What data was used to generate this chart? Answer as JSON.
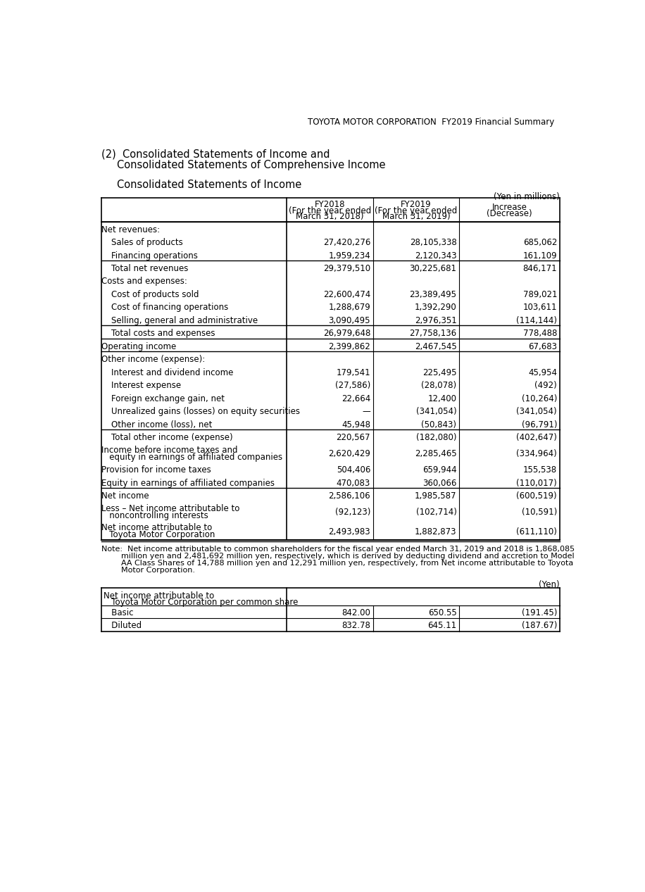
{
  "header_title": "TOYOTA MOTOR CORPORATION  FY2019 Financial Summary",
  "section_title1": "(2)  Consolidated Statements of Income and",
  "section_title2": "     Consolidated Statements of Comprehensive Income",
  "section_title3": "Consolidated Statements of Income",
  "yen_millions_label": "(Yen in millions)",
  "col_headers": [
    [
      "FY2018",
      "(For the year ended",
      "March 31, 2018)"
    ],
    [
      "FY2019",
      "(For the year ended",
      "March 31, 2019)"
    ],
    [
      "Increase",
      "(Decrease)"
    ]
  ],
  "rows": [
    {
      "label": "Net revenues:",
      "fy2018": "",
      "fy2019": "",
      "inc": "",
      "indent": 0,
      "top_border": true,
      "double": false
    },
    {
      "label": "Sales of products",
      "fy2018": "27,420,276",
      "fy2019": "28,105,338",
      "inc": "685,062",
      "indent": 1,
      "top_border": false,
      "double": false
    },
    {
      "label": "Financing operations",
      "fy2018": "1,959,234",
      "fy2019": "2,120,343",
      "inc": "161,109",
      "indent": 1,
      "top_border": false,
      "double": false
    },
    {
      "label": "Total net revenues",
      "fy2018": "29,379,510",
      "fy2019": "30,225,681",
      "inc": "846,171",
      "indent": 1,
      "top_border": true,
      "double": false
    },
    {
      "label": "Costs and expenses:",
      "fy2018": "",
      "fy2019": "",
      "inc": "",
      "indent": 0,
      "top_border": false,
      "double": false
    },
    {
      "label": "Cost of products sold",
      "fy2018": "22,600,474",
      "fy2019": "23,389,495",
      "inc": "789,021",
      "indent": 1,
      "top_border": false,
      "double": false
    },
    {
      "label": "Cost of financing operations",
      "fy2018": "1,288,679",
      "fy2019": "1,392,290",
      "inc": "103,611",
      "indent": 1,
      "top_border": false,
      "double": false
    },
    {
      "label": "Selling, general and administrative",
      "fy2018": "3,090,495",
      "fy2019": "2,976,351",
      "inc": "(114,144)",
      "indent": 1,
      "top_border": false,
      "double": false
    },
    {
      "label": "Total costs and expenses",
      "fy2018": "26,979,648",
      "fy2019": "27,758,136",
      "inc": "778,488",
      "indent": 1,
      "top_border": true,
      "double": false
    },
    {
      "label": "Operating income",
      "fy2018": "2,399,862",
      "fy2019": "2,467,545",
      "inc": "67,683",
      "indent": 0,
      "top_border": true,
      "double": false
    },
    {
      "label": "Other income (expense):",
      "fy2018": "",
      "fy2019": "",
      "inc": "",
      "indent": 0,
      "top_border": true,
      "double": false
    },
    {
      "label": "Interest and dividend income",
      "fy2018": "179,541",
      "fy2019": "225,495",
      "inc": "45,954",
      "indent": 1,
      "top_border": false,
      "double": false
    },
    {
      "label": "Interest expense",
      "fy2018": "(27,586)",
      "fy2019": "(28,078)",
      "inc": "(492)",
      "indent": 1,
      "top_border": false,
      "double": false
    },
    {
      "label": "Foreign exchange gain, net",
      "fy2018": "22,664",
      "fy2019": "12,400",
      "inc": "(10,264)",
      "indent": 1,
      "top_border": false,
      "double": false
    },
    {
      "label": "Unrealized gains (losses) on equity securities",
      "fy2018": "—",
      "fy2019": "(341,054)",
      "inc": "(341,054)",
      "indent": 1,
      "top_border": false,
      "double": false
    },
    {
      "label": "Other income (loss), net",
      "fy2018": "45,948",
      "fy2019": "(50,843)",
      "inc": "(96,791)",
      "indent": 1,
      "top_border": false,
      "double": false
    },
    {
      "label": "Total other income (expense)",
      "fy2018": "220,567",
      "fy2019": "(182,080)",
      "inc": "(402,647)",
      "indent": 1,
      "top_border": true,
      "double": false
    },
    {
      "label": "Income before income taxes and",
      "label2": "   equity in earnings of affiliated companies",
      "fy2018": "2,620,429",
      "fy2019": "2,285,465",
      "inc": "(334,964)",
      "indent": 0,
      "top_border": false,
      "double": true
    },
    {
      "label": "Provision for income taxes",
      "fy2018": "504,406",
      "fy2019": "659,944",
      "inc": "155,538",
      "indent": 0,
      "top_border": false,
      "double": false
    },
    {
      "label": "Equity in earnings of affiliated companies",
      "fy2018": "470,083",
      "fy2019": "360,066",
      "inc": "(110,017)",
      "indent": 0,
      "top_border": false,
      "double": false
    },
    {
      "label": "Net income",
      "fy2018": "2,586,106",
      "fy2019": "1,985,587",
      "inc": "(600,519)",
      "indent": 0,
      "top_border": true,
      "double": false
    },
    {
      "label": "Less – Net income attributable to",
      "label2": "   noncontrolling interests",
      "fy2018": "(92,123)",
      "fy2019": "(102,714)",
      "inc": "(10,591)",
      "indent": 0,
      "top_border": false,
      "double": true
    },
    {
      "label": "Net income attributable to",
      "label2": "   Toyota Motor Corporation",
      "fy2018": "2,493,983",
      "fy2019": "1,882,873",
      "inc": "(611,110)",
      "indent": 0,
      "top_border": false,
      "double": true
    }
  ],
  "note_text_lines": [
    "Note:  Net income attributable to common shareholders for the fiscal year ended March 31, 2019 and 2018 is 1,868,085",
    "        million yen and 2,481,692 million yen, respectively, which is derived by deducting dividend and accretion to Model",
    "        AA Class Shares of 14,788 million yen and 12,291 million yen, respectively, from Net income attributable to Toyota",
    "        Motor Corporation."
  ],
  "yen_label2": "(Yen)",
  "per_share_label1": "Net income attributable to",
  "per_share_label2": "   Toyota Motor Corporation per common share",
  "per_share_rows": [
    {
      "label": "   Basic",
      "fy2018": "842.00",
      "fy2019": "650.55",
      "inc": "(191.45)"
    },
    {
      "label": "   Diluted",
      "fy2018": "832.78",
      "fy2019": "645.11",
      "inc": "(187.67)"
    }
  ],
  "bg_color": "#ffffff",
  "text_color": "#000000"
}
